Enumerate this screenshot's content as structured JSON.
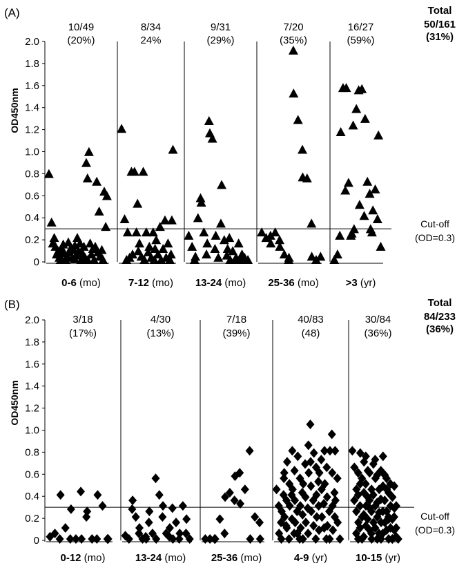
{
  "chart_data": [
    {
      "panel": "(A)",
      "type": "scatter",
      "marker": "triangle",
      "ylabel": "OD450nm",
      "ylim": [
        0,
        2.0
      ],
      "yticks": [
        "0",
        "0.2",
        "0.4",
        "0.6",
        "0.8",
        "1.0",
        "1.2",
        "1.4",
        "1.6",
        "1.8",
        "2.0"
      ],
      "cutoff": {
        "value": 0.3,
        "label1": "Cut-off",
        "label2": "(OD=0.3)"
      },
      "total": {
        "label": "Total",
        "count": "50/161",
        "pct": "(31%)"
      },
      "groups": [
        {
          "name_bold": "0-6",
          "name_unit": "(mo)",
          "count": "10/49",
          "pct": "(20%)",
          "values": [
            0.78,
            0.34,
            0.2,
            0.15,
            0.12,
            0.08,
            0.05,
            0.02,
            0.0,
            -0.01,
            0.14,
            0.1,
            0.06,
            0.03,
            0.0,
            0.16,
            0.11,
            0.07,
            0.02,
            0.13,
            0.09,
            0.04,
            0.01,
            0.2,
            0.15,
            0.08,
            0.0,
            0.12,
            0.06,
            0.02,
            0.0,
            0.88,
            0.98,
            0.74,
            0.15,
            0.1,
            0.05,
            0.0,
            0.71,
            0.12,
            0.07,
            0.03,
            0.44,
            0.09,
            0.04,
            0.0,
            0.3,
            0.62,
            0.58
          ]
        },
        {
          "name_bold": "7-12",
          "name_unit": "(mo)",
          "count": "8/34",
          "pct": "24%",
          "values": [
            1.19,
            0.37,
            0.25,
            0.0,
            0.02,
            0.05,
            0.8,
            0.8,
            0.51,
            0.25,
            0.15,
            0.08,
            0.03,
            0.0,
            0.8,
            0.25,
            0.12,
            0.07,
            0.02,
            0.0,
            0.25,
            0.18,
            0.1,
            0.05,
            0.0,
            0.3,
            0.1,
            0.02,
            0.36,
            0.15,
            0.05,
            0.0,
            1.0,
            0.36
          ]
        },
        {
          "name_bold": "13-24",
          "name_unit": "(mo)",
          "count": "9/31",
          "pct": "(29%)",
          "values": [
            0.22,
            0.12,
            0.03,
            0.0,
            0.38,
            0.52,
            0.56,
            0.25,
            0.15,
            0.05,
            1.15,
            1.26,
            1.1,
            0.22,
            0.1,
            0.02,
            0.68,
            0.33,
            0.18,
            0.1,
            0.04,
            0.0,
            0.2,
            0.08,
            0.02,
            0.0,
            0.15,
            0.05,
            0.0,
            0.02,
            0.0
          ]
        },
        {
          "name_bold": "25-36",
          "name_unit": "(mo)",
          "count": "7/20",
          "pct": "(35%)",
          "values": [
            0.25,
            0.2,
            0.22,
            0.15,
            0.25,
            0.18,
            0.12,
            0.05,
            0.0,
            0.02,
            1.9,
            1.51,
            1.27,
            1.0,
            0.75,
            0.74,
            0.33,
            0.03,
            0.0,
            0.03
          ]
        },
        {
          "name_bold": ">3",
          "name_unit": "(yr)",
          "count": "16/27",
          "pct": "(59%)",
          "values": [
            0.0,
            0.05,
            1.16,
            0.22,
            1.56,
            1.56,
            0.63,
            0.7,
            0.24,
            0.22,
            0.28,
            1.22,
            1.37,
            0.5,
            1.54,
            1.55,
            1.28,
            0.4,
            0.71,
            0.28,
            0.6,
            0.45,
            0.25,
            0.64,
            1.13,
            0.37,
            0.12
          ]
        }
      ]
    },
    {
      "panel": "(B)",
      "type": "scatter",
      "marker": "diamond",
      "ylabel": "OD450nm",
      "ylim": [
        0,
        2.0
      ],
      "yticks": [
        "0",
        "0.2",
        "0.4",
        "0.6",
        "0.8",
        "1.0",
        "1.2",
        "1.4",
        "1.6",
        "1.8",
        "2.0"
      ],
      "cutoff": {
        "value": 0.3,
        "label1": "Cut-off",
        "label2": "(OD=0.3)"
      },
      "total": {
        "label": "Total",
        "count": "84/233",
        "pct": "(36%)"
      },
      "groups": [
        {
          "name_bold": "0-12",
          "name_unit": "(mo)",
          "count": "3/18",
          "pct": "(17%)",
          "values": [
            0.02,
            0.05,
            0.0,
            0.4,
            0.1,
            0.0,
            0.27,
            0.0,
            0.43,
            0.0,
            0.2,
            0.25,
            0.0,
            0.0,
            0.4,
            0.3,
            0.0,
            0.0
          ]
        },
        {
          "name_bold": "13-24",
          "name_unit": "(mo)",
          "count": "4/30",
          "pct": "(13%)",
          "values": [
            0.03,
            0.0,
            0.35,
            0.27,
            0.2,
            0.1,
            0.05,
            0.0,
            0.0,
            0.02,
            0.25,
            0.15,
            0.05,
            0.0,
            0.55,
            0.4,
            0.3,
            0.2,
            0.05,
            0.1,
            0.02,
            0.0,
            0.28,
            0.15,
            0.05,
            0.0,
            0.3,
            0.18,
            0.05,
            0.0
          ]
        },
        {
          "name_bold": "25-36",
          "name_unit": "(mo)",
          "count": "7/18",
          "pct": "(39%)",
          "values": [
            0.0,
            0.0,
            0.0,
            0.0,
            0.18,
            0.05,
            0.38,
            0.42,
            0.35,
            0.57,
            0.6,
            0.32,
            0.45,
            0.8,
            0.0,
            0.2,
            0.15,
            0.0
          ]
        },
        {
          "name_bold": "4-9",
          "name_unit": "(yr)",
          "count": "40/83",
          "pct": "(48)",
          "values": [
            0.45,
            0.3,
            0.15,
            0.05,
            0.0,
            0.4,
            0.25,
            0.55,
            0.12,
            0.6,
            0.35,
            0.2,
            0.1,
            0.0,
            0.7,
            0.5,
            0.4,
            0.3,
            0.18,
            0.05,
            0.8,
            0.62,
            0.45,
            0.35,
            0.25,
            0.15,
            0.05,
            0.0,
            0.75,
            0.55,
            0.42,
            0.3,
            0.22,
            0.1,
            0.0,
            0.68,
            0.5,
            0.38,
            0.28,
            0.15,
            0.05,
            1.04,
            0.85,
            0.7,
            0.6,
            0.48,
            0.35,
            0.25,
            0.12,
            0.0,
            0.78,
            0.65,
            0.52,
            0.4,
            0.3,
            0.2,
            0.08,
            0.72,
            0.6,
            0.45,
            0.32,
            0.2,
            0.1,
            0.0,
            0.8,
            0.65,
            0.5,
            0.38,
            0.25,
            0.12,
            0.0,
            0.95,
            0.8,
            0.6,
            0.42,
            0.3,
            0.2,
            0.08,
            0.8,
            0.55,
            0.35,
            0.15,
            0.0
          ]
        },
        {
          "name_bold": "10-15",
          "name_unit": "(yr)",
          "count": "30/84",
          "pct": "(36%)",
          "values": [
            0.8,
            0.65,
            0.45,
            0.35,
            0.25,
            0.15,
            0.05,
            0.0,
            0.78,
            0.6,
            0.5,
            0.4,
            0.3,
            0.2,
            0.1,
            0.0,
            0.7,
            0.55,
            0.42,
            0.3,
            0.22,
            0.12,
            0.02,
            0.75,
            0.62,
            0.5,
            0.38,
            0.28,
            0.18,
            0.08,
            0.0,
            0.6,
            0.45,
            0.35,
            0.25,
            0.15,
            0.05,
            0.68,
            0.55,
            0.4,
            0.3,
            0.2,
            0.1,
            0.0,
            0.72,
            0.58,
            0.45,
            0.33,
            0.24,
            0.15,
            0.05,
            0.0,
            0.75,
            0.62,
            0.48,
            0.36,
            0.25,
            0.15,
            0.05,
            0.58,
            0.45,
            0.35,
            0.25,
            0.18,
            0.08,
            0.0,
            0.55,
            0.42,
            0.3,
            0.2,
            0.1,
            0.0,
            0.5,
            0.38,
            0.28,
            0.18,
            0.08,
            0.0,
            0.48,
            0.3,
            0.2,
            0.1,
            0.0,
            0.02
          ]
        }
      ]
    }
  ]
}
